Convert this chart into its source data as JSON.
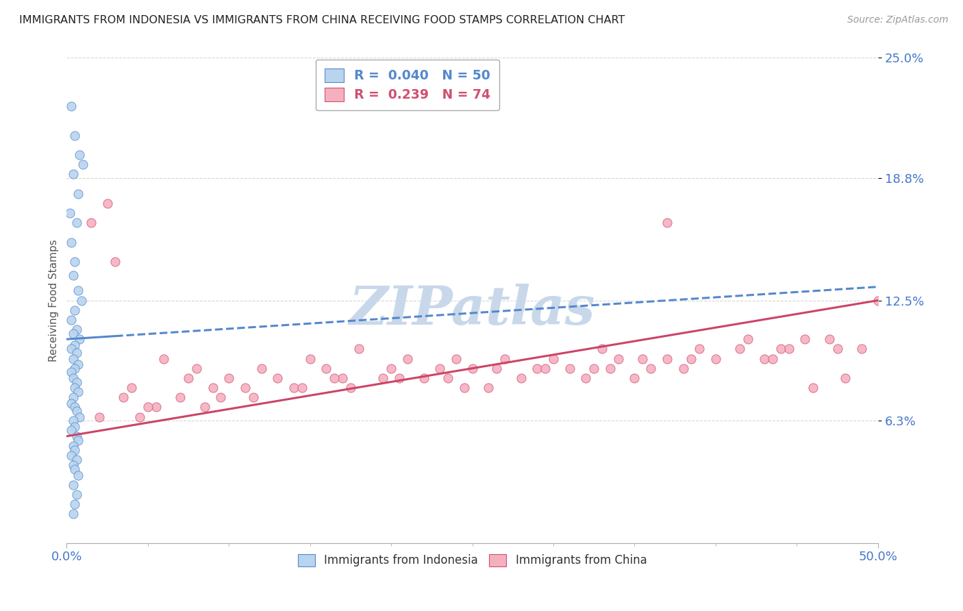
{
  "title": "IMMIGRANTS FROM INDONESIA VS IMMIGRANTS FROM CHINA RECEIVING FOOD STAMPS CORRELATION CHART",
  "source": "Source: ZipAtlas.com",
  "ylabel": "Receiving Food Stamps",
  "x_min": 0.0,
  "x_max": 50.0,
  "y_min": 0.0,
  "y_max": 25.0,
  "x_tick_labels": [
    "0.0%",
    "50.0%"
  ],
  "y_ticks": [
    6.3,
    12.5,
    18.8,
    25.0
  ],
  "y_tick_labels": [
    "6.3%",
    "12.5%",
    "18.8%",
    "25.0%"
  ],
  "indonesia_fill_color": "#b8d4ee",
  "indonesia_edge_color": "#5588cc",
  "china_fill_color": "#f5b0c0",
  "china_edge_color": "#d05070",
  "indonesia_R": 0.04,
  "indonesia_N": 50,
  "china_R": 0.239,
  "china_N": 74,
  "indo_trend_color": "#5588cc",
  "china_trend_color": "#cc4466",
  "background_color": "#ffffff",
  "watermark": "ZIPatlas",
  "watermark_color": "#c8d8ea",
  "grid_color": "#cccccc",
  "title_color": "#222222",
  "tick_label_color": "#4477cc",
  "indo_trend_start_x": 0.0,
  "indo_trend_start_y": 10.5,
  "indo_trend_end_x": 50.0,
  "indo_trend_end_y": 13.2,
  "china_trend_start_x": 0.0,
  "china_trend_start_y": 5.5,
  "china_trend_end_x": 50.0,
  "china_trend_end_y": 12.5,
  "indo_solid_end_x": 3.0,
  "indonesia_points_x": [
    0.3,
    0.5,
    0.8,
    1.0,
    0.4,
    0.7,
    0.2,
    0.6,
    0.3,
    0.5,
    0.4,
    0.7,
    0.9,
    0.5,
    0.3,
    0.6,
    0.4,
    0.8,
    0.5,
    0.3,
    0.6,
    0.4,
    0.7,
    0.5,
    0.3,
    0.4,
    0.6,
    0.5,
    0.7,
    0.4,
    0.3,
    0.5,
    0.6,
    0.8,
    0.4,
    0.5,
    0.3,
    0.6,
    0.7,
    0.4,
    0.5,
    0.3,
    0.6,
    0.4,
    0.5,
    0.7,
    0.4,
    0.6,
    0.5,
    0.4
  ],
  "indonesia_points_y": [
    22.5,
    21.0,
    20.0,
    19.5,
    19.0,
    18.0,
    17.0,
    16.5,
    15.5,
    14.5,
    13.8,
    13.0,
    12.5,
    12.0,
    11.5,
    11.0,
    10.8,
    10.5,
    10.2,
    10.0,
    9.8,
    9.5,
    9.2,
    9.0,
    8.8,
    8.5,
    8.3,
    8.0,
    7.8,
    7.5,
    7.2,
    7.0,
    6.8,
    6.5,
    6.3,
    6.0,
    5.8,
    5.5,
    5.3,
    5.0,
    4.8,
    4.5,
    4.3,
    4.0,
    3.8,
    3.5,
    3.0,
    2.5,
    2.0,
    1.5
  ],
  "china_points_x": [
    1.5,
    2.5,
    4.0,
    3.0,
    5.5,
    6.0,
    7.5,
    8.0,
    9.0,
    10.0,
    11.0,
    12.0,
    13.0,
    14.0,
    15.0,
    16.0,
    17.0,
    18.0,
    19.5,
    20.0,
    21.0,
    22.0,
    23.0,
    24.0,
    25.0,
    26.0,
    27.0,
    28.0,
    29.0,
    30.0,
    31.0,
    32.0,
    33.0,
    34.0,
    35.0,
    36.0,
    37.0,
    38.0,
    39.0,
    40.0,
    42.0,
    43.0,
    44.0,
    46.0,
    47.0,
    48.0,
    49.0,
    3.5,
    5.0,
    7.0,
    9.5,
    11.5,
    14.5,
    17.5,
    20.5,
    23.5,
    26.5,
    29.5,
    32.5,
    35.5,
    38.5,
    41.5,
    44.5,
    47.5,
    2.0,
    4.5,
    8.5,
    16.5,
    24.5,
    33.5,
    37.0,
    43.5,
    45.5,
    50.0
  ],
  "china_points_y": [
    16.5,
    17.5,
    8.0,
    14.5,
    7.0,
    9.5,
    8.5,
    9.0,
    8.0,
    8.5,
    8.0,
    9.0,
    8.5,
    8.0,
    9.5,
    9.0,
    8.5,
    10.0,
    8.5,
    9.0,
    9.5,
    8.5,
    9.0,
    9.5,
    9.0,
    8.0,
    9.5,
    8.5,
    9.0,
    9.5,
    9.0,
    8.5,
    10.0,
    9.5,
    8.5,
    9.0,
    9.5,
    9.0,
    10.0,
    9.5,
    10.5,
    9.5,
    10.0,
    8.0,
    10.5,
    8.5,
    10.0,
    7.5,
    7.0,
    7.5,
    7.5,
    7.5,
    8.0,
    8.0,
    8.5,
    8.5,
    9.0,
    9.0,
    9.0,
    9.5,
    9.5,
    10.0,
    10.0,
    10.0,
    6.5,
    6.5,
    7.0,
    8.5,
    8.0,
    9.0,
    16.5,
    9.5,
    10.5,
    12.5
  ]
}
